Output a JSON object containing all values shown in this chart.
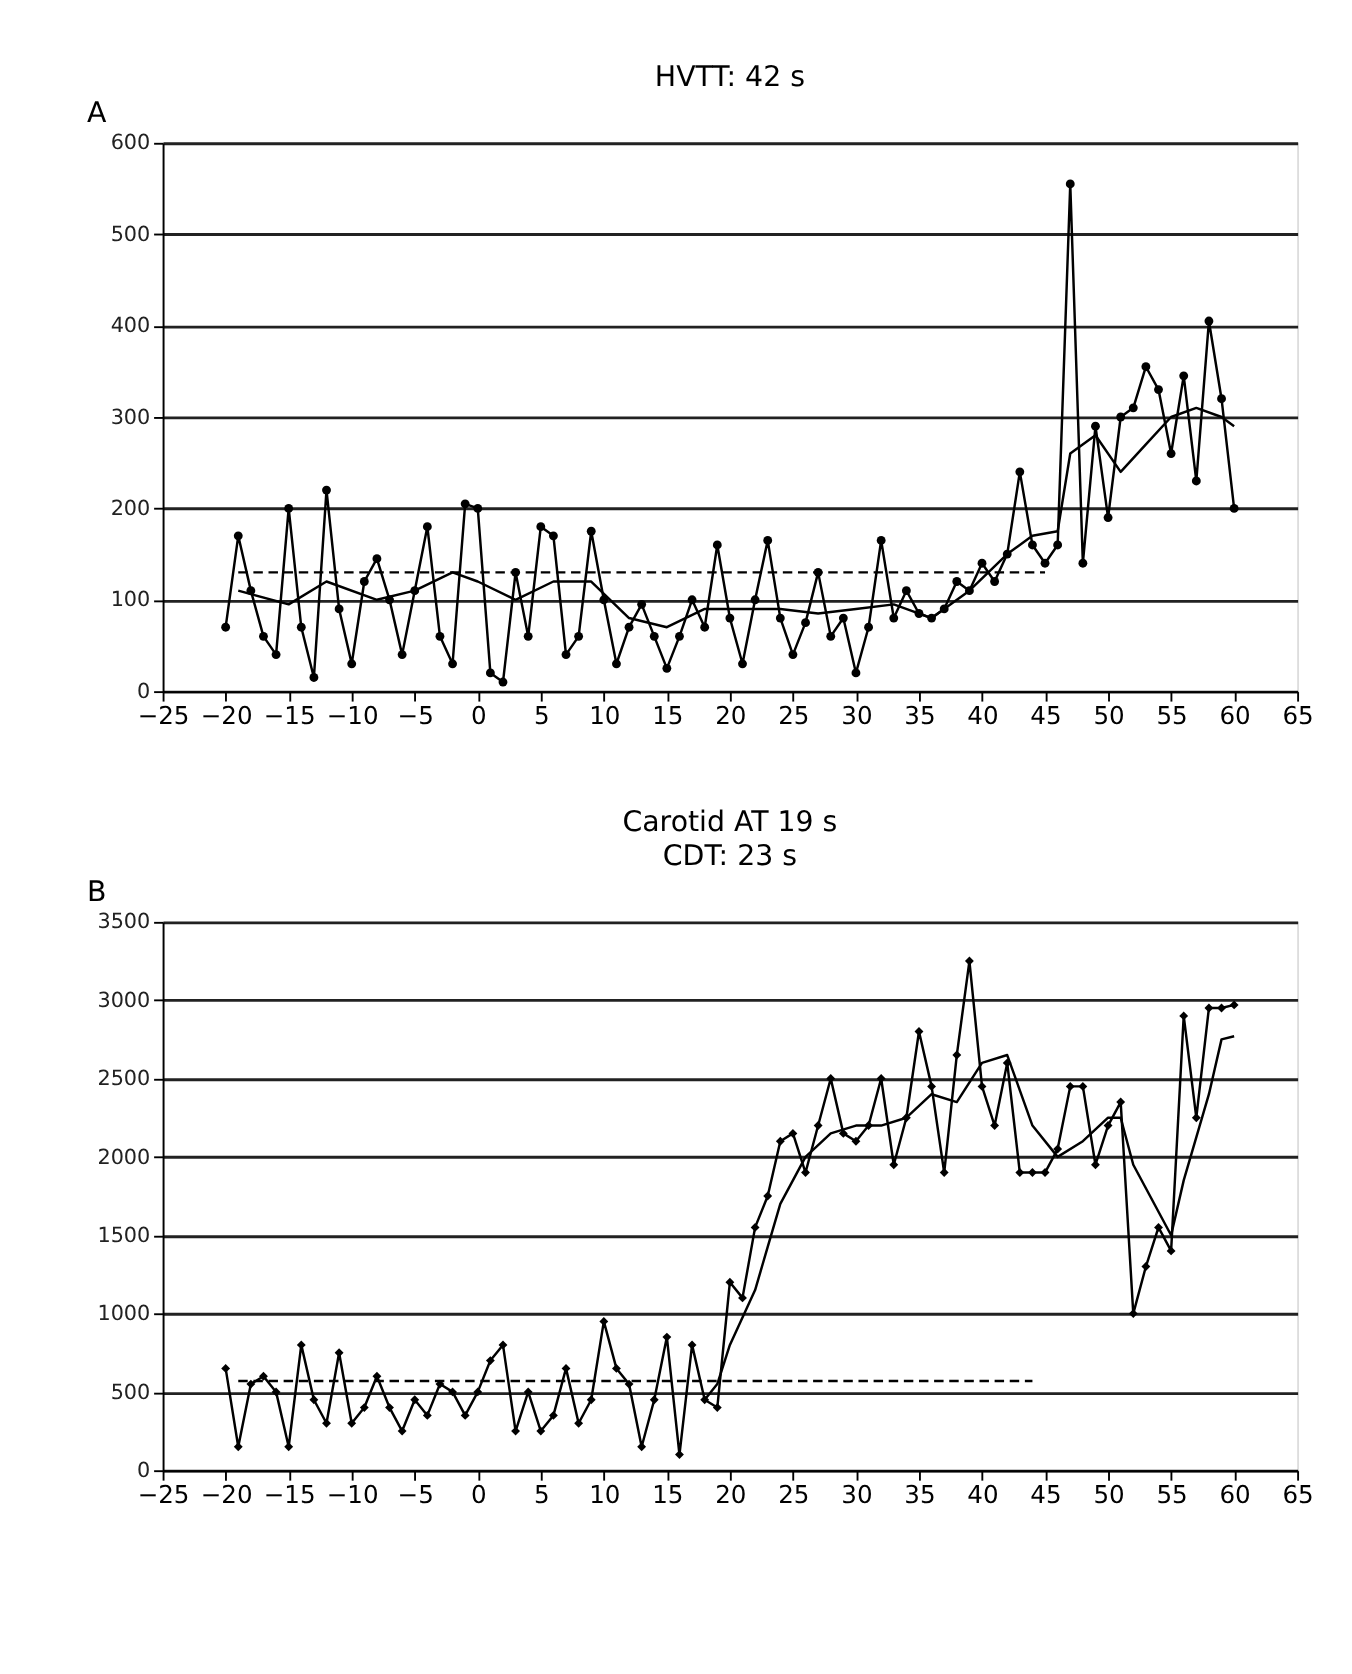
{
  "chart_data": [
    {
      "type": "line",
      "title": "HVTT: 42 s",
      "annotations": [
        "A"
      ],
      "xlim": [
        -25,
        65
      ],
      "xticks": [
        -25,
        -20,
        -15,
        -10,
        -5,
        0,
        5,
        10,
        15,
        20,
        25,
        30,
        35,
        40,
        45,
        50,
        55,
        60,
        65
      ],
      "ylim": [
        0,
        600
      ],
      "yticks": [
        0,
        100,
        200,
        300,
        400,
        500,
        600
      ],
      "grid": "y",
      "series": [
        {
          "color": "#000000",
          "marker": "circle",
          "line_style": "solid",
          "x": [
            -20,
            -19,
            -18,
            -17,
            -16,
            -15,
            -14,
            -13,
            -12,
            -11,
            -10,
            -9,
            -8,
            -7,
            -6,
            -5,
            -4,
            -3,
            -2,
            -1,
            0,
            1,
            2,
            3,
            4,
            5,
            6,
            7,
            8,
            9,
            10,
            11,
            12,
            13,
            14,
            15,
            16,
            17,
            18,
            19,
            20,
            21,
            22,
            23,
            24,
            25,
            26,
            27,
            28,
            29,
            30,
            31,
            32,
            33,
            34,
            35,
            36,
            37,
            38,
            39,
            40,
            41,
            42,
            43,
            44,
            45,
            46,
            47,
            48,
            49,
            50,
            51,
            52,
            53,
            54,
            55,
            56,
            57,
            58,
            59,
            60
          ],
          "values": [
            70,
            170,
            110,
            60,
            40,
            200,
            70,
            15,
            220,
            90,
            30,
            120,
            145,
            100,
            40,
            110,
            180,
            60,
            30,
            205,
            200,
            20,
            10,
            130,
            60,
            180,
            170,
            40,
            60,
            175,
            100,
            30,
            70,
            95,
            60,
            25,
            60,
            100,
            70,
            160,
            80,
            30,
            100,
            165,
            80,
            40,
            75,
            130,
            60,
            80,
            20,
            70,
            165,
            80,
            110,
            85,
            80,
            90,
            120,
            110,
            140,
            120,
            150,
            240,
            160,
            140,
            160,
            555,
            140,
            290,
            190,
            300,
            310,
            355,
            330,
            260,
            345,
            230,
            405,
            320,
            200
          ]
        },
        {
          "color": "#000000",
          "marker": "none",
          "line_style": "solid",
          "x": [
            -19,
            -15,
            -12,
            -8,
            -5,
            -2,
            0,
            3,
            6,
            9,
            12,
            15,
            18,
            21,
            24,
            27,
            30,
            33,
            36,
            39,
            42,
            44,
            46,
            47,
            49,
            51,
            53,
            55,
            57,
            59,
            60
          ],
          "values": [
            110,
            95,
            120,
            100,
            110,
            130,
            120,
            100,
            120,
            120,
            80,
            70,
            90,
            90,
            90,
            85,
            90,
            95,
            80,
            110,
            150,
            170,
            175,
            260,
            280,
            240,
            270,
            300,
            310,
            300,
            290
          ]
        },
        {
          "color": "#000000",
          "marker": "none",
          "line_style": "dashed",
          "x": [
            -19,
            45
          ],
          "values": [
            130,
            130
          ]
        }
      ]
    },
    {
      "type": "line",
      "title": "Carotid AT 19 s",
      "subtitle": "CDT: 23 s",
      "annotations": [
        "B"
      ],
      "xlim": [
        -25,
        65
      ],
      "xticks": [
        -25,
        -20,
        -15,
        -10,
        -5,
        0,
        5,
        10,
        15,
        20,
        25,
        30,
        35,
        40,
        45,
        50,
        55,
        60,
        65
      ],
      "ylim": [
        0,
        3500
      ],
      "yticks": [
        0,
        500,
        1000,
        1500,
        2000,
        2500,
        3000,
        3500
      ],
      "grid": "y",
      "series": [
        {
          "color": "#000000",
          "marker": "diamond",
          "line_style": "solid",
          "x": [
            -20,
            -19,
            -18,
            -17,
            -16,
            -15,
            -14,
            -13,
            -12,
            -11,
            -10,
            -9,
            -8,
            -7,
            -6,
            -5,
            -4,
            -3,
            -2,
            -1,
            0,
            1,
            2,
            3,
            4,
            5,
            6,
            7,
            8,
            9,
            10,
            11,
            12,
            13,
            14,
            15,
            16,
            17,
            18,
            19,
            20,
            21,
            22,
            23,
            24,
            25,
            26,
            27,
            28,
            29,
            30,
            31,
            32,
            33,
            34,
            35,
            36,
            37,
            38,
            39,
            40,
            41,
            42,
            43,
            44,
            45,
            46,
            47,
            48,
            49,
            50,
            51,
            52,
            53,
            54,
            55,
            56,
            57,
            58,
            59,
            60
          ],
          "values": [
            650,
            150,
            550,
            600,
            500,
            150,
            800,
            450,
            300,
            750,
            300,
            400,
            600,
            400,
            250,
            450,
            350,
            550,
            500,
            350,
            500,
            700,
            800,
            250,
            500,
            250,
            350,
            650,
            300,
            450,
            950,
            650,
            550,
            150,
            450,
            850,
            100,
            800,
            450,
            400,
            1200,
            1100,
            1550,
            1750,
            2100,
            2150,
            1900,
            2200,
            2500,
            2150,
            2100,
            2200,
            2500,
            1950,
            2250,
            2800,
            2450,
            1900,
            2650,
            3250,
            2450,
            2200,
            2600,
            1900,
            1900,
            1900,
            2050,
            2450,
            2450,
            1950,
            2200,
            2350,
            1000,
            1300,
            1550,
            1400,
            2900,
            2250,
            2950,
            2950,
            2970
          ]
        },
        {
          "color": "#000000",
          "marker": "none",
          "line_style": "solid",
          "x": [
            18,
            19,
            20,
            22,
            24,
            26,
            28,
            30,
            32,
            34,
            36,
            38,
            40,
            42,
            44,
            46,
            48,
            50,
            51,
            52,
            55,
            56,
            58,
            59,
            60
          ],
          "values": [
            450,
            550,
            800,
            1150,
            1700,
            2000,
            2150,
            2200,
            2200,
            2250,
            2400,
            2350,
            2600,
            2650,
            2200,
            2000,
            2100,
            2250,
            2250,
            1950,
            1500,
            1850,
            2400,
            2750,
            2770
          ]
        },
        {
          "color": "#000000",
          "marker": "none",
          "line_style": "dashed",
          "x": [
            -19,
            44
          ],
          "values": [
            570,
            570
          ]
        }
      ]
    }
  ]
}
